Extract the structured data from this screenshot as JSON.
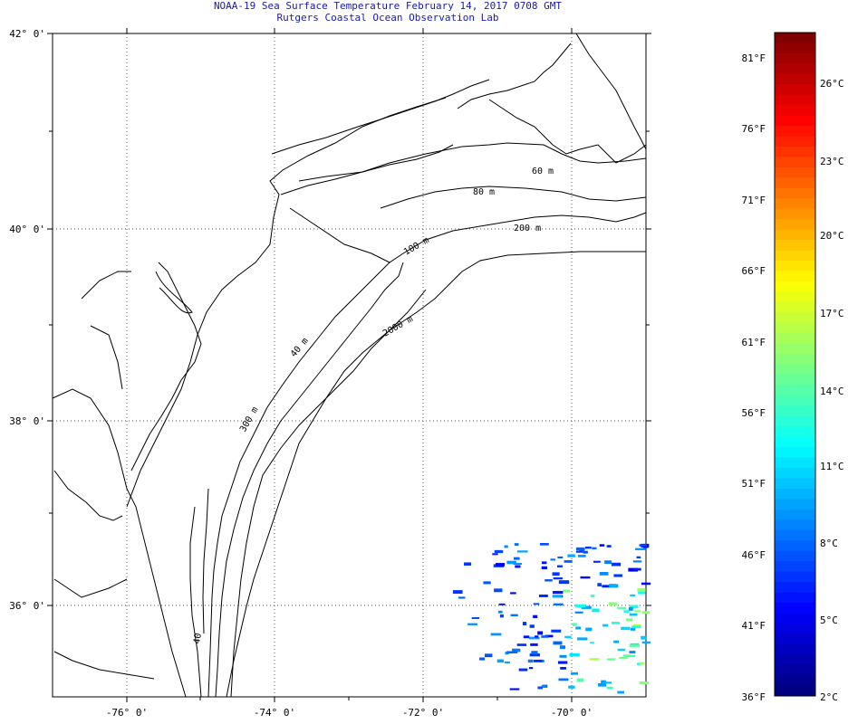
{
  "header": {
    "title": "NOAA-19 Sea Surface Temperature February 14, 2017 0708 GMT",
    "subtitle": "Rutgers Coastal Ocean Observation Lab"
  },
  "map": {
    "lat_labels": [
      "42° 0'",
      "40° 0'",
      "38° 0'",
      "36° 0'"
    ],
    "lon_labels": [
      "-76° 0'",
      "-74° 0'",
      "-72° 0'",
      "-70° 0'"
    ],
    "contour_labels": [
      "60 m",
      "80 m",
      "100 m",
      "200 m",
      "2000 m",
      "40 m",
      "300 m",
      "40"
    ],
    "coastline_color": "#000000",
    "gridline_style": "dotted"
  },
  "colorbar": {
    "fahrenheit_labels": [
      "81°F",
      "76°F",
      "71°F",
      "66°F",
      "61°F",
      "56°F",
      "51°F",
      "46°F",
      "41°F",
      "36°F"
    ],
    "celsius_labels": [
      "26°C",
      "23°C",
      "20°C",
      "17°C",
      "14°C",
      "11°C",
      "8°C",
      "5°C",
      "2°C"
    ],
    "scale": "jet",
    "range_celsius": [
      2,
      28
    ]
  }
}
